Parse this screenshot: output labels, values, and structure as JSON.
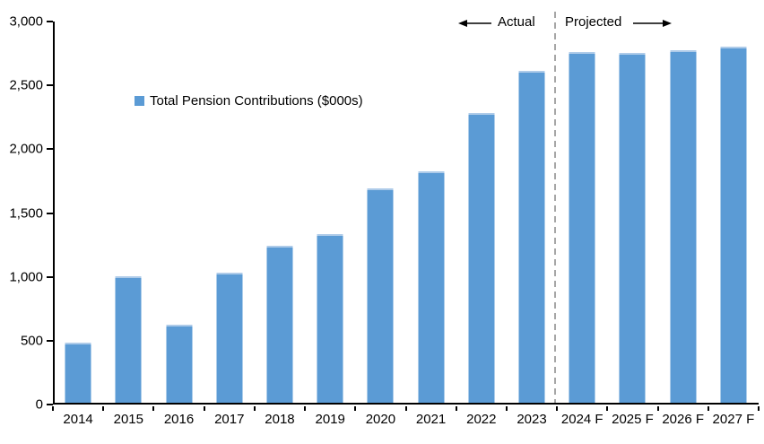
{
  "chart_data": {
    "type": "bar",
    "title": "",
    "legend": {
      "label": "Total Pension Contributions ($000s)",
      "marker_icon": "legend-square-icon",
      "position": "inside-upper-left"
    },
    "categories": [
      "2014",
      "2015",
      "2016",
      "2017",
      "2018",
      "2019",
      "2020",
      "2021",
      "2022",
      "2023",
      "2024 F",
      "2025 F",
      "2026 F",
      "2027 F"
    ],
    "values": [
      470,
      990,
      610,
      1020,
      1230,
      1320,
      1680,
      1810,
      2270,
      2600,
      2750,
      2740,
      2760,
      2790
    ],
    "xlabel": "",
    "ylabel": "",
    "ylim": [
      0,
      3000
    ],
    "ytick_step": 500,
    "ytick_labels_top_to_bottom": [
      "3,000",
      "2,500",
      "2,000",
      "1,500",
      "1,000",
      "500",
      "0"
    ],
    "grid": false,
    "annotations": {
      "left_label": "Actual",
      "left_icon": "arrow-left-icon",
      "right_label": "Projected",
      "right_icon": "arrow-right-icon",
      "divider": "dashed vertical line between 2023 and 2024 F"
    },
    "divider_boundary_index": 10,
    "colors": {
      "bar": "#5B9BD5",
      "bar_top_edge": "#AECBE9",
      "axis": "#000000",
      "text": "#000000",
      "divider": "#A6A6A6",
      "background": "#FFFFFF"
    }
  }
}
